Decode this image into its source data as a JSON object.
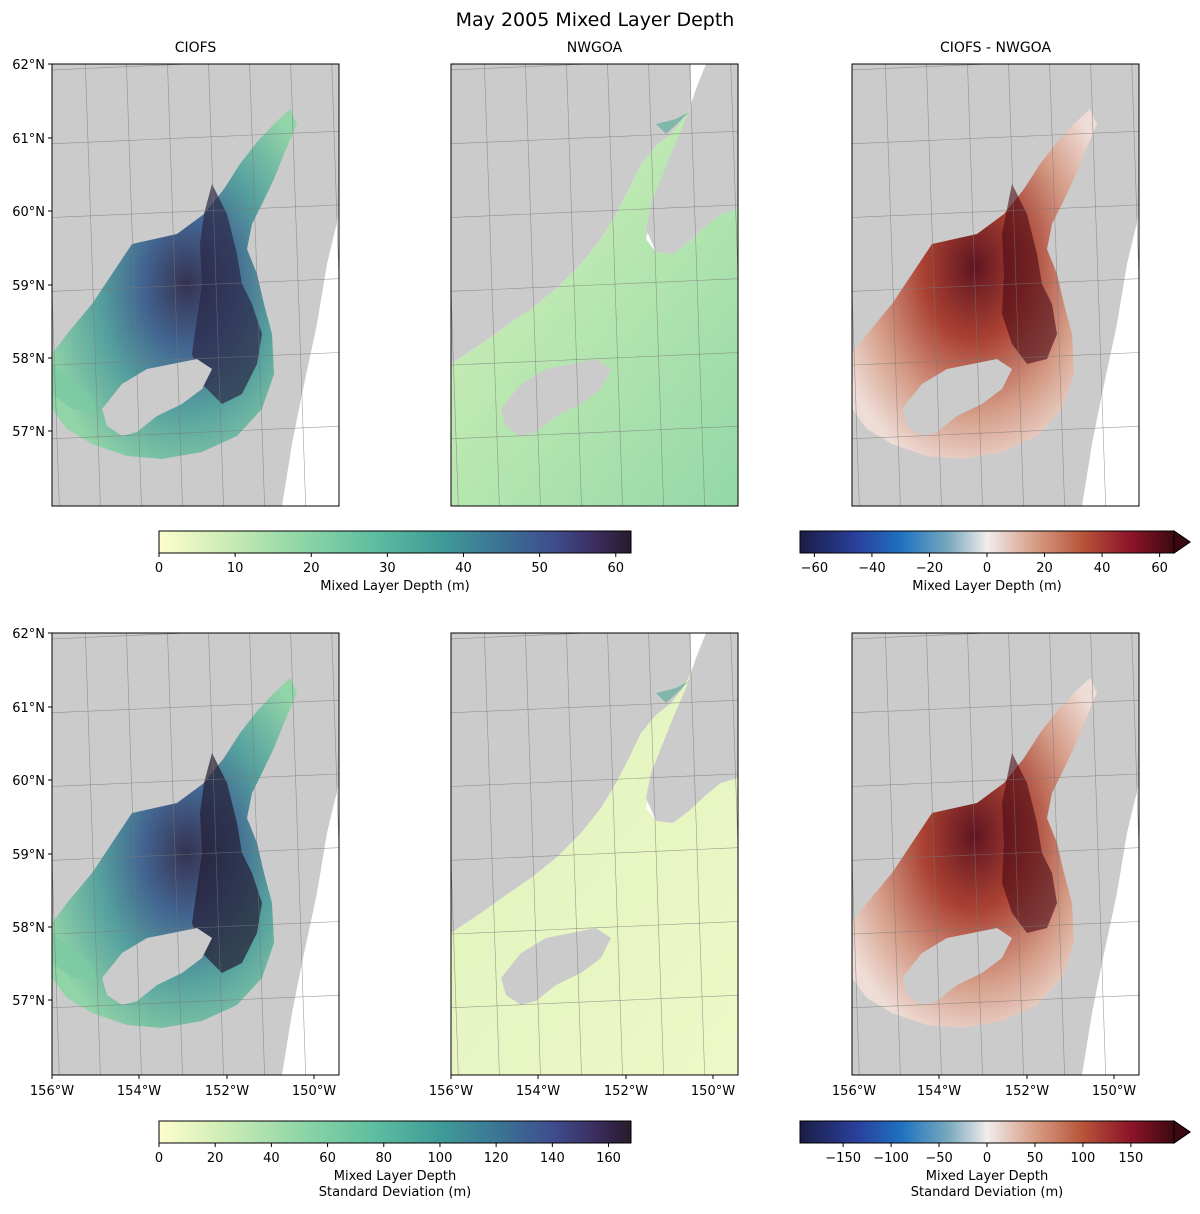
{
  "figure_title": "May 2005 Mixed Layer Depth",
  "chart_data": {
    "type": "heatmap",
    "title": "May 2005 Mixed Layer Depth",
    "column_titles": [
      "CIOFS",
      "NWGOA",
      "CIOFS - NWGOA"
    ],
    "lat_ticks": [
      "62°N",
      "61°N",
      "60°N",
      "59°N",
      "58°N",
      "57°N"
    ],
    "lon_ticks": [
      "156°W",
      "154°W",
      "152°W",
      "150°W"
    ],
    "lat_range": [
      56.0,
      62.0
    ],
    "lon_range": [
      -156.0,
      -149.0
    ],
    "rows": [
      {
        "name": "mean",
        "colorbars": [
          {
            "name": "depth",
            "colormap": "deep (yellow to dark purple)",
            "label": [
              "Mixed Layer Depth (m)"
            ],
            "range": [
              0,
              62
            ],
            "ticks": [
              0,
              10,
              20,
              30,
              40,
              50,
              60
            ],
            "extend": "neither"
          },
          {
            "name": "difference",
            "colormap": "balance (blue-white-red)",
            "label": [
              "Mixed Layer Depth (m)"
            ],
            "range": [
              -65,
              65
            ],
            "ticks": [
              -60,
              -40,
              -20,
              0,
              20,
              40,
              60
            ],
            "tick_labels": [
              "−60",
              "−40",
              "−20",
              "0",
              "20",
              "40",
              "60"
            ],
            "extend": "max"
          }
        ]
      },
      {
        "name": "std",
        "colorbars": [
          {
            "name": "depth",
            "colormap": "deep (yellow to dark purple)",
            "label": [
              "Mixed Layer Depth",
              "Standard Deviation (m)"
            ],
            "range": [
              0,
              168
            ],
            "ticks": [
              0,
              20,
              40,
              60,
              80,
              100,
              120,
              140,
              160
            ],
            "extend": "neither"
          },
          {
            "name": "difference",
            "colormap": "balance (blue-white-red)",
            "label": [
              "Mixed Layer Depth",
              "Standard Deviation (m)"
            ],
            "range": [
              -195,
              195
            ],
            "ticks": [
              -150,
              -100,
              -50,
              0,
              50,
              100,
              150
            ],
            "tick_labels": [
              "−150",
              "−100",
              "−50",
              "0",
              "50",
              "100",
              "150"
            ],
            "extend": "max"
          }
        ]
      }
    ],
    "colors": {
      "land": "#cbcbcb",
      "deep_low": "#fdfecc",
      "deep_mid": "#5fbfa0",
      "deep_high": "#281a2c",
      "diff_low": "#1b1d45",
      "diff_mid": "#f1ecec",
      "diff_high": "#3c0912"
    }
  }
}
